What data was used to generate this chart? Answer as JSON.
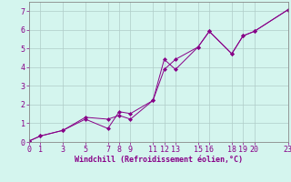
{
  "xlabel": "Windchill (Refroidissement éolien,°C)",
  "background_color": "#d4f5ee",
  "line_color": "#880088",
  "grid_color": "#b0ccc8",
  "xlim": [
    0,
    23
  ],
  "ylim": [
    0,
    7.5
  ],
  "xticks": [
    0,
    1,
    3,
    5,
    7,
    8,
    9,
    11,
    12,
    13,
    15,
    16,
    18,
    19,
    20,
    23
  ],
  "yticks": [
    0,
    1,
    2,
    3,
    4,
    5,
    6,
    7
  ],
  "series1_x": [
    0,
    1,
    3,
    5,
    7,
    8,
    9,
    11,
    12,
    13,
    15,
    16,
    18,
    19,
    20,
    23
  ],
  "series1_y": [
    0.05,
    0.32,
    0.62,
    1.22,
    0.72,
    1.62,
    1.52,
    2.22,
    4.42,
    3.88,
    5.08,
    5.92,
    4.72,
    5.68,
    5.92,
    7.08
  ],
  "series2_x": [
    0,
    1,
    3,
    5,
    7,
    8,
    9,
    11,
    12,
    13,
    15,
    16,
    18,
    19,
    20,
    23
  ],
  "series2_y": [
    0.05,
    0.32,
    0.62,
    1.32,
    1.22,
    1.42,
    1.22,
    2.22,
    3.88,
    4.42,
    5.08,
    5.92,
    4.72,
    5.68,
    5.92,
    7.08
  ],
  "tick_fontsize": 6,
  "xlabel_fontsize": 6,
  "linewidth": 0.7,
  "markersize": 2.0
}
